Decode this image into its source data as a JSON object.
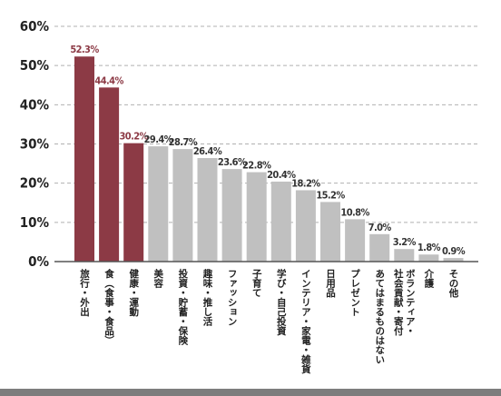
{
  "chart_data": {
    "type": "bar",
    "title": "",
    "xlabel": "",
    "ylabel": "",
    "ylim": [
      0,
      60
    ],
    "yticks": [
      0,
      10,
      20,
      30,
      40,
      50,
      60
    ],
    "ytick_suffix": "%",
    "grid": true,
    "value_suffix": "%",
    "highlight_color": "#8c3a45",
    "default_color": "#c0c0c0",
    "categories": [
      {
        "lines": [
          "旅行・外出"
        ]
      },
      {
        "lines": [
          "食（食事・食品）"
        ]
      },
      {
        "lines": [
          "健康・運動"
        ]
      },
      {
        "lines": [
          "美容"
        ]
      },
      {
        "lines": [
          "投資・貯蓄・保険"
        ]
      },
      {
        "lines": [
          "趣味・推し活"
        ]
      },
      {
        "lines": [
          "ファッション"
        ]
      },
      {
        "lines": [
          "子育て"
        ]
      },
      {
        "lines": [
          "学び・自己投資"
        ]
      },
      {
        "lines": [
          "インテリア・家電・雑貨"
        ]
      },
      {
        "lines": [
          "日用品"
        ]
      },
      {
        "lines": [
          "プレゼント"
        ]
      },
      {
        "lines": [
          "あてはまるものはない"
        ]
      },
      {
        "lines": [
          "ボランティア・",
          "社会貢献・寄付"
        ]
      },
      {
        "lines": [
          "介護"
        ]
      },
      {
        "lines": [
          "その他"
        ]
      }
    ],
    "values": [
      52.3,
      44.4,
      30.2,
      29.4,
      28.7,
      26.4,
      23.6,
      22.8,
      20.4,
      18.2,
      15.2,
      10.8,
      7.0,
      3.2,
      1.8,
      0.9
    ],
    "value_labels": [
      "52.3%",
      "44.4%",
      "30.2%",
      "29.4%",
      "28.7%",
      "26.4%",
      "23.6%",
      "22.8%",
      "20.4%",
      "18.2%",
      "15.2%",
      "10.8%",
      "7.0%",
      "3.2%",
      "1.8%",
      "0.9%"
    ],
    "highlighted": [
      true,
      true,
      true,
      false,
      false,
      false,
      false,
      false,
      false,
      false,
      false,
      false,
      false,
      false,
      false,
      false
    ]
  }
}
